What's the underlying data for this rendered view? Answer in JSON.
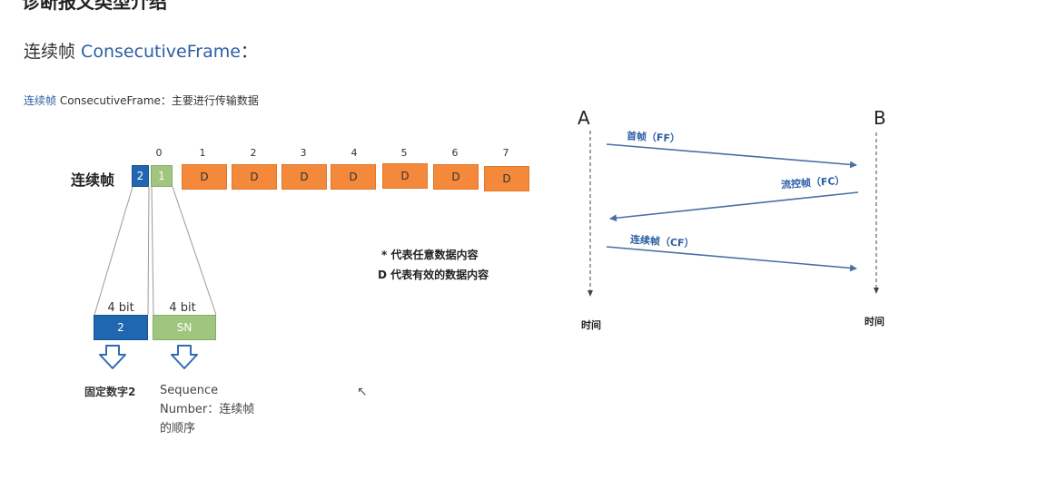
{
  "top_title": "诊断报文类型介绍",
  "section_heading": {
    "cn": "连续帧 ",
    "en": "ConsecutiveFrame",
    "suffix": "："
  },
  "caption": {
    "hl": "连续帧",
    "text": " ConsecutiveFrame：主要进行传输数据"
  },
  "frame": {
    "label": "连续帧",
    "indices": [
      "0",
      "1",
      "2",
      "3",
      "4",
      "5",
      "6",
      "7"
    ],
    "pci_type": "2",
    "sn": "1",
    "data_cells": [
      "D",
      "D",
      "D",
      "D",
      "D",
      "D",
      "D"
    ]
  },
  "breakdown": {
    "type_bits": "4 bit",
    "type_value": "2",
    "sn_bits": "4 bit",
    "sn_value": "SN",
    "type_desc": "固定数字2",
    "sn_desc_line1": "Sequence",
    "sn_desc_line2": "Number：连续帧",
    "sn_desc_line3": "的顺序"
  },
  "notes": {
    "star": "* 代表任意数据内容",
    "d": "D 代表有效的数据内容"
  },
  "sequence": {
    "node_a": "A",
    "node_b": "B",
    "time_label_a": "时间",
    "time_label_b": "时间",
    "messages": [
      {
        "label": "首帧（FF）",
        "direction": "A-to-B"
      },
      {
        "label": "流控帧（FC）",
        "direction": "B-to-A"
      },
      {
        "label": "连续帧（CF）",
        "direction": "A-to-B"
      }
    ]
  },
  "colors": {
    "pci_blue": "#1f67b1",
    "sn_green": "#9fc57f",
    "data_orange": "#f4893b",
    "arrow_blue": "#4a6fa5"
  }
}
